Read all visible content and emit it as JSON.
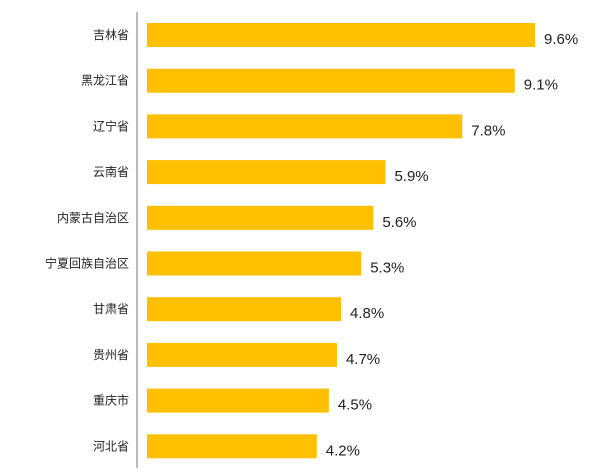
{
  "chart_data": {
    "type": "bar",
    "orientation": "horizontal",
    "categories": [
      "吉林省",
      "黑龙江省",
      "辽宁省",
      "云南省",
      "内蒙古自治区",
      "宁夏回族自治区",
      "甘肃省",
      "贵州省",
      "重庆市",
      "河北省"
    ],
    "values": [
      9.6,
      9.1,
      7.8,
      5.9,
      5.6,
      5.3,
      4.8,
      4.7,
      4.5,
      4.2
    ],
    "value_labels": [
      "9.6%",
      "9.1%",
      "7.8%",
      "5.9%",
      "5.6%",
      "5.3%",
      "4.8%",
      "4.7%",
      "4.5%",
      "4.2%"
    ],
    "xlim": [
      0,
      9.6
    ],
    "grid": false,
    "legend": "none",
    "bar_color": "#FFC000",
    "axis_color": "#8C8C8C"
  }
}
